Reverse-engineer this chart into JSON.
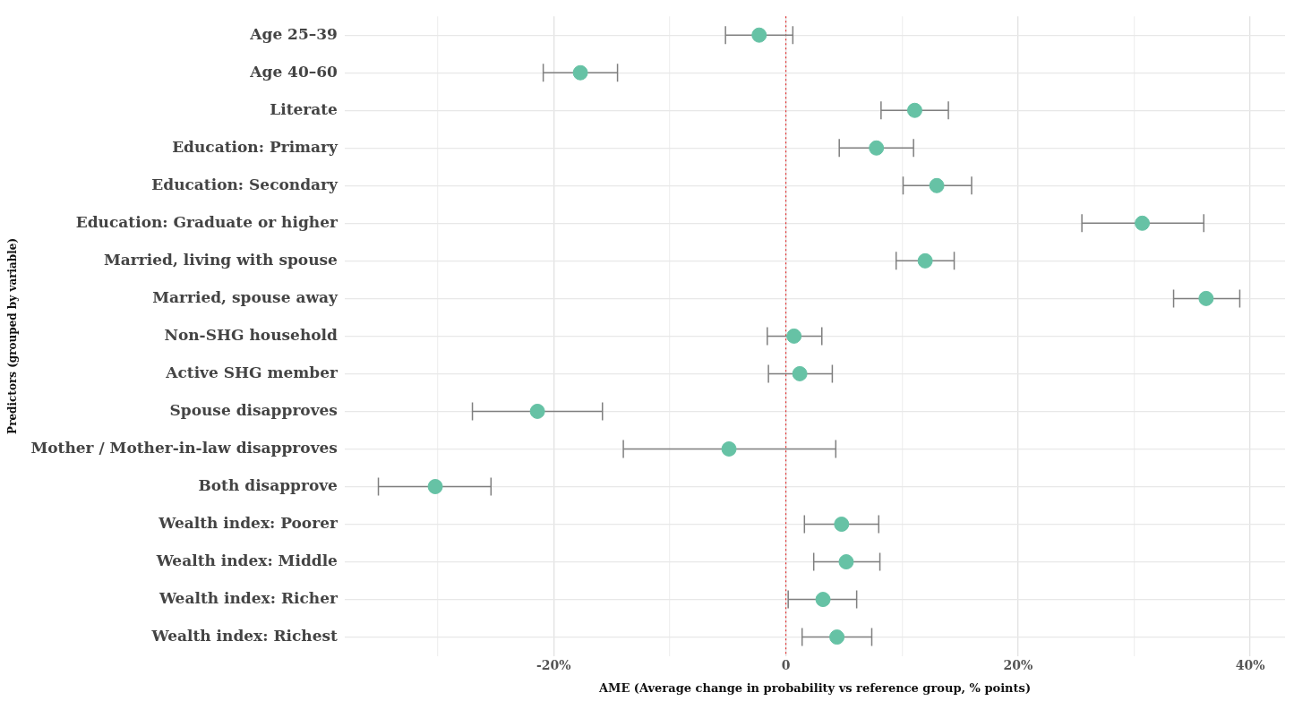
{
  "chart_data": {
    "type": "scatter",
    "orientation": "horizontal",
    "xlabel": "AME (Average change in probability vs reference group, % points)",
    "ylabel": "Predictors (grouped by variable)",
    "categories": [
      "Age 25–39",
      "Age 40–60",
      "Literate",
      "Education: Primary",
      "Education: Secondary",
      "Education: Graduate or higher",
      "Married, living with spouse",
      "Married, spouse away",
      "Non-SHG household",
      "Active SHG member",
      "Spouse disapproves",
      "Mother / Mother-in-law disapproves",
      "Both disapprove",
      "Wealth index: Poorer",
      "Wealth index: Middle",
      "Wealth index: Richer",
      "Wealth index: Richest"
    ],
    "series": [
      {
        "color": "#66c2a5",
        "values": [
          -2.3,
          -17.7,
          11.1,
          7.8,
          13.0,
          30.7,
          12.0,
          36.2,
          0.7,
          1.2,
          -21.4,
          -4.9,
          -30.2,
          4.8,
          5.2,
          3.2,
          4.4
        ],
        "errors": [
          [
            -5.2,
            0.6
          ],
          [
            -20.9,
            -14.5
          ],
          [
            8.2,
            14.0
          ],
          [
            4.6,
            11.0
          ],
          [
            10.1,
            16.0
          ],
          [
            25.5,
            36.0
          ],
          [
            9.5,
            14.5
          ],
          [
            33.4,
            39.1
          ],
          [
            -1.6,
            3.1
          ],
          [
            -1.5,
            4.0
          ],
          [
            -27.0,
            -15.8
          ],
          [
            -14.0,
            4.3
          ],
          [
            -35.1,
            -25.4
          ],
          [
            1.6,
            8.0
          ],
          [
            2.4,
            8.1
          ],
          [
            0.2,
            6.1
          ],
          [
            1.4,
            7.4
          ]
        ]
      }
    ],
    "xlim": [
      -38,
      43
    ],
    "xticks": [
      {
        "value": -30,
        "label": null
      },
      {
        "value": -20,
        "label": "-20%"
      },
      {
        "value": -10,
        "label": null
      },
      0,
      {
        "value": 10,
        "label": null
      },
      {
        "value": 20,
        "label": "20%"
      },
      {
        "value": 30,
        "label": null
      },
      {
        "value": 40,
        "label": "40%"
      }
    ],
    "ref_lines": [
      {
        "axis": "x",
        "value": 0,
        "color": "#e03030",
        "line_style": "dotted"
      }
    ],
    "grid": true,
    "legend": false,
    "marker": "circle"
  }
}
